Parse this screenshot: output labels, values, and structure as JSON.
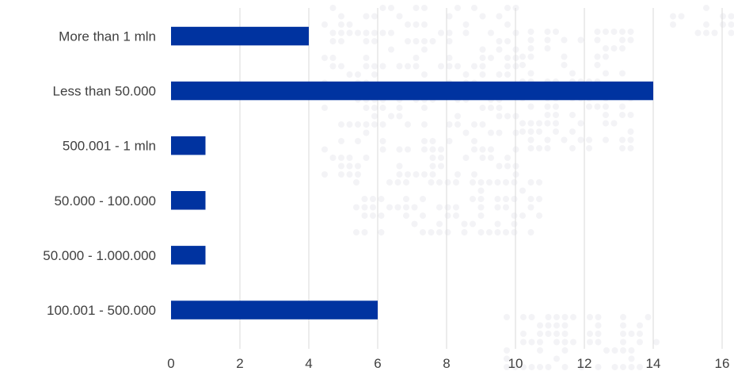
{
  "chart_data": {
    "type": "bar",
    "orientation": "horizontal",
    "categories": [
      "More than 1 mln",
      "Less than 50.000",
      "500.001 - 1 mln",
      "50.000 - 100.000",
      "50.000 - 1.000.000",
      "100.001 - 500.000"
    ],
    "values": [
      4,
      14,
      1,
      1,
      1,
      6
    ],
    "xlim": [
      0,
      16
    ],
    "xticks": [
      0,
      2,
      4,
      6,
      8,
      10,
      12,
      14,
      16
    ],
    "grid": true,
    "legend": "none",
    "bar_color": "#0033A0",
    "grid_color": "#d9d9d9",
    "text_color": "#404040",
    "background_pattern": "dotted-world-map"
  }
}
